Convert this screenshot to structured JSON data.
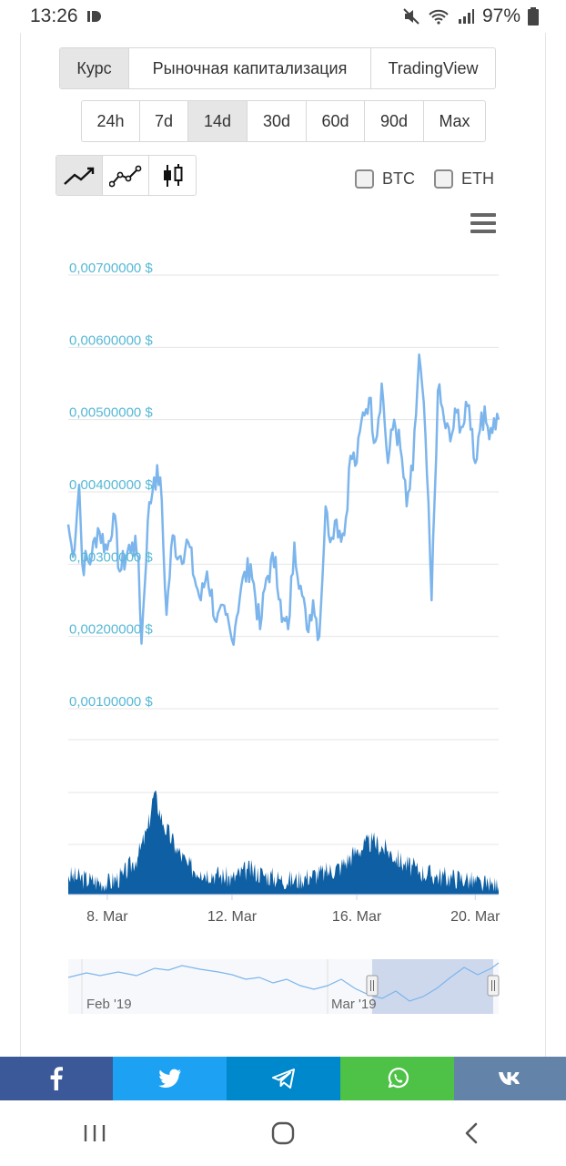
{
  "status_bar": {
    "time": "13:26",
    "battery": "97%"
  },
  "tabs": [
    {
      "label": "Курс",
      "active": true
    },
    {
      "label": "Рыночная капитализация",
      "active": false
    },
    {
      "label": "TradingView",
      "active": false
    }
  ],
  "periods": [
    {
      "label": "24h",
      "active": false
    },
    {
      "label": "7d",
      "active": false
    },
    {
      "label": "14d",
      "active": true
    },
    {
      "label": "30d",
      "active": false
    },
    {
      "label": "60d",
      "active": false
    },
    {
      "label": "90d",
      "active": false
    },
    {
      "label": "Max",
      "active": false
    }
  ],
  "chart_types": [
    {
      "icon": "line-chart-icon",
      "active": true
    },
    {
      "icon": "line-markers-chart-icon",
      "active": false
    },
    {
      "icon": "candlestick-chart-icon",
      "active": false
    }
  ],
  "compare": {
    "btc": {
      "label": "BTC",
      "checked": false
    },
    "eth": {
      "label": "ETH",
      "checked": false
    }
  },
  "colors": {
    "price_line": "#7cb5ec",
    "volume": "#0e5fa3",
    "axis_label": "#57b8d6",
    "navigator_selection": "#c8d4ea",
    "facebook": "#3b5998",
    "twitter": "#1da1f2",
    "telegram": "#0088cc",
    "whatsapp": "#4dc247",
    "vk": "#6383a8"
  },
  "chart_data": {
    "type": "line",
    "y_ticks": [
      "0,00700000 $",
      "0,00600000 $",
      "0,00500000 $",
      "0,00400000 $",
      "0,00300000 $",
      "0,00200000 $",
      "0,00100000 $"
    ],
    "ylim": [
      0.001,
      0.007
    ],
    "x_ticks": [
      "8. Mar",
      "12. Mar",
      "16. Mar",
      "20. Mar"
    ],
    "x_range_days": [
      6.75,
      20.55
    ],
    "price": [
      [
        6.75,
        0.00355
      ],
      [
        6.9,
        0.0031
      ],
      [
        7.1,
        0.0041
      ],
      [
        7.2,
        0.003
      ],
      [
        7.5,
        0.0031
      ],
      [
        7.7,
        0.0035
      ],
      [
        8.0,
        0.0032
      ],
      [
        8.2,
        0.0037
      ],
      [
        8.4,
        0.0029
      ],
      [
        8.8,
        0.0033
      ],
      [
        9.0,
        0.0031
      ],
      [
        9.1,
        0.0019
      ],
      [
        9.3,
        0.0036
      ],
      [
        9.5,
        0.0042
      ],
      [
        9.7,
        0.0042
      ],
      [
        9.9,
        0.0023
      ],
      [
        10.1,
        0.0034
      ],
      [
        10.3,
        0.0031
      ],
      [
        10.6,
        0.0033
      ],
      [
        10.8,
        0.0028
      ],
      [
        11.0,
        0.0025
      ],
      [
        11.2,
        0.0029
      ],
      [
        11.5,
        0.0022
      ],
      [
        11.8,
        0.0023
      ],
      [
        12.0,
        0.00195
      ],
      [
        12.3,
        0.0027
      ],
      [
        12.6,
        0.003
      ],
      [
        12.9,
        0.0021
      ],
      [
        13.1,
        0.0028
      ],
      [
        13.4,
        0.0031
      ],
      [
        13.6,
        0.0022
      ],
      [
        13.8,
        0.0021
      ],
      [
        14.0,
        0.0033
      ],
      [
        14.2,
        0.0027
      ],
      [
        14.4,
        0.0021
      ],
      [
        14.6,
        0.0025
      ],
      [
        14.8,
        0.002
      ],
      [
        15.0,
        0.0038
      ],
      [
        15.1,
        0.0034
      ],
      [
        15.3,
        0.0036
      ],
      [
        15.6,
        0.0034
      ],
      [
        15.8,
        0.0045
      ],
      [
        16.0,
        0.0044
      ],
      [
        16.2,
        0.0051
      ],
      [
        16.4,
        0.0053
      ],
      [
        16.6,
        0.0047
      ],
      [
        16.8,
        0.0055
      ],
      [
        17.0,
        0.0044
      ],
      [
        17.2,
        0.005
      ],
      [
        17.4,
        0.0046
      ],
      [
        17.6,
        0.0038
      ],
      [
        17.8,
        0.0043
      ],
      [
        18.0,
        0.0059
      ],
      [
        18.2,
        0.0048
      ],
      [
        18.4,
        0.0025
      ],
      [
        18.6,
        0.0054
      ],
      [
        18.8,
        0.005
      ],
      [
        19.0,
        0.0047
      ],
      [
        19.2,
        0.0051
      ],
      [
        19.4,
        0.0049
      ],
      [
        19.6,
        0.0052
      ],
      [
        19.8,
        0.0044
      ],
      [
        20.0,
        0.0051
      ],
      [
        20.2,
        0.0049
      ],
      [
        20.55,
        0.005
      ]
    ],
    "volume_relative": [
      [
        6.75,
        0.12
      ],
      [
        7.5,
        0.09
      ],
      [
        8.0,
        0.07
      ],
      [
        8.5,
        0.12
      ],
      [
        9.0,
        0.25
      ],
      [
        9.3,
        0.42
      ],
      [
        9.5,
        0.65
      ],
      [
        9.8,
        0.45
      ],
      [
        10.2,
        0.3
      ],
      [
        10.6,
        0.18
      ],
      [
        11.0,
        0.15
      ],
      [
        11.5,
        0.13
      ],
      [
        12.0,
        0.1
      ],
      [
        12.5,
        0.16
      ],
      [
        13.0,
        0.13
      ],
      [
        13.5,
        0.1
      ],
      [
        14.0,
        0.09
      ],
      [
        14.5,
        0.12
      ],
      [
        15.0,
        0.14
      ],
      [
        15.5,
        0.18
      ],
      [
        16.0,
        0.28
      ],
      [
        16.5,
        0.34
      ],
      [
        17.0,
        0.28
      ],
      [
        17.5,
        0.2
      ],
      [
        18.0,
        0.15
      ],
      [
        18.5,
        0.12
      ],
      [
        19.0,
        0.11
      ],
      [
        19.5,
        0.1
      ],
      [
        20.0,
        0.06
      ],
      [
        20.55,
        0.05
      ]
    ]
  },
  "navigator": {
    "labels": [
      "Feb '19",
      "Mar '19"
    ]
  },
  "share_buttons": [
    {
      "icon": "facebook-icon"
    },
    {
      "icon": "twitter-icon"
    },
    {
      "icon": "telegram-icon"
    },
    {
      "icon": "whatsapp-icon"
    },
    {
      "icon": "vk-icon"
    }
  ]
}
